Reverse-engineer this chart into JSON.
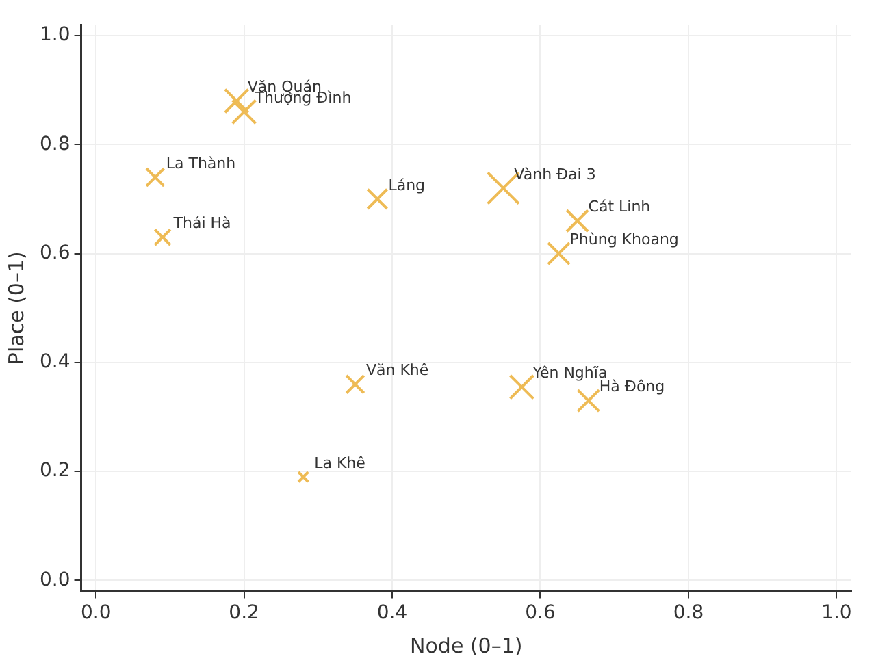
{
  "chart_data": {
    "type": "bubble",
    "xlabel": "Node (0–1)",
    "ylabel": "Place (0–1)",
    "marker": "cross",
    "grid": true,
    "legend": false,
    "series": [
      {
        "color": "#eebb55",
        "x": [
          0.19,
          0.2,
          0.08,
          0.09,
          0.38,
          0.55,
          0.65,
          0.625,
          0.35,
          0.575,
          0.665,
          0.28
        ],
        "values": [
          0.88,
          0.86,
          0.74,
          0.63,
          0.7,
          0.72,
          0.66,
          0.6,
          0.36,
          0.355,
          0.33,
          0.19
        ],
        "sizes": [
          0.56,
          0.56,
          0.32,
          0.25,
          0.39,
          1,
          0.47,
          0.47,
          0.32,
          0.56,
          0.47,
          0.1
        ]
      }
    ],
    "xlim": [
      -0.02,
      1.02
    ],
    "ylim": [
      -0.02,
      1.02
    ],
    "xticks": [
      {
        "value": 0,
        "label": "0.0"
      },
      {
        "value": 0.2,
        "label": "0.2"
      },
      {
        "value": 0.4,
        "label": "0.4"
      },
      {
        "value": 0.6,
        "label": "0.6"
      },
      {
        "value": 0.8,
        "label": "0.8"
      },
      {
        "value": 1,
        "label": "1.0"
      }
    ],
    "yticks": [
      {
        "value": 0,
        "label": "0.0"
      },
      {
        "value": 0.2,
        "label": "0.2"
      },
      {
        "value": 0.4,
        "label": "0.4"
      },
      {
        "value": 0.6,
        "label": "0.6"
      },
      {
        "value": 0.8,
        "label": "0.8"
      },
      {
        "value": 1,
        "label": "1.0"
      }
    ],
    "annotations": [
      {
        "text": "Văn Quán",
        "x": 0.19,
        "y": 0.88
      },
      {
        "text": "Thượng Đình",
        "x": 0.2,
        "y": 0.86
      },
      {
        "text": "La Thành",
        "x": 0.08,
        "y": 0.74
      },
      {
        "text": "Thái Hà",
        "x": 0.09,
        "y": 0.63
      },
      {
        "text": "Láng",
        "x": 0.38,
        "y": 0.7
      },
      {
        "text": "Vành Đai 3",
        "x": 0.55,
        "y": 0.72
      },
      {
        "text": "Cát Linh",
        "x": 0.65,
        "y": 0.66
      },
      {
        "text": "Phùng Khoang",
        "x": 0.625,
        "y": 0.6
      },
      {
        "text": "Văn Khê",
        "x": 0.35,
        "y": 0.36
      },
      {
        "text": "Yên Nghĩa",
        "x": 0.575,
        "y": 0.355
      },
      {
        "text": "Hà Đông",
        "x": 0.665,
        "y": 0.33
      },
      {
        "text": "La Khê",
        "x": 0.28,
        "y": 0.19
      }
    ]
  }
}
